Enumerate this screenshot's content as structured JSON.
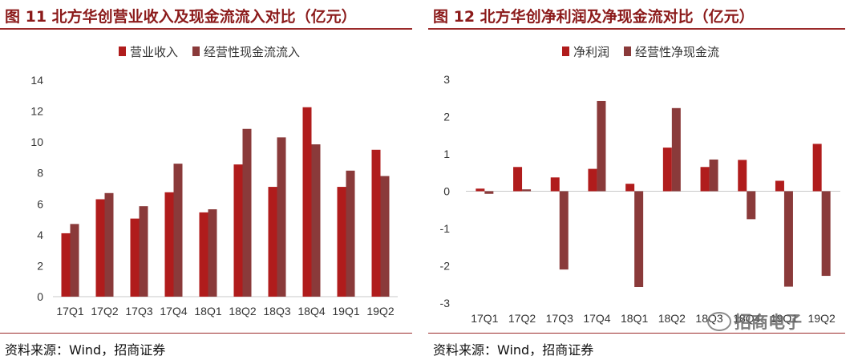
{
  "colors": {
    "primary": "#b01c1c",
    "secondary": "#8a3a3a",
    "rule": "#9b2a2a",
    "title": "#8b1a1a"
  },
  "left": {
    "title": "图 11  北方华创营业收入及现金流流入对比（亿元）",
    "source": "资料来源：Wind，招商证券"
  },
  "right": {
    "title": "图 12  北方华创净利润及净现金流对比（亿元）",
    "source": "资料来源：Wind，招商证券",
    "watermark": "招商电子"
  },
  "chart_data": [
    {
      "type": "bar",
      "categories": [
        "17Q1",
        "17Q2",
        "17Q3",
        "17Q4",
        "18Q1",
        "18Q2",
        "18Q3",
        "18Q4",
        "19Q1",
        "19Q2"
      ],
      "series": [
        {
          "name": "营业收入",
          "values": [
            4.1,
            6.3,
            5.05,
            6.75,
            5.45,
            8.55,
            7.1,
            12.25,
            7.1,
            9.5
          ]
        },
        {
          "name": "经营性现金流流入",
          "values": [
            4.7,
            6.7,
            5.85,
            8.6,
            5.65,
            10.85,
            10.3,
            9.85,
            8.15,
            7.8
          ]
        }
      ],
      "ylim": [
        0,
        14
      ],
      "yticks": [
        0,
        2,
        4,
        6,
        8,
        10,
        12,
        14
      ],
      "legend": "top"
    },
    {
      "type": "bar",
      "categories": [
        "17Q1",
        "17Q2",
        "17Q3",
        "17Q4",
        "18Q1",
        "18Q2",
        "18Q3",
        "18Q4",
        "19Q1",
        "19Q2"
      ],
      "series": [
        {
          "name": "净利润",
          "values": [
            0.07,
            0.65,
            0.37,
            0.6,
            0.2,
            1.17,
            0.65,
            0.84,
            0.28,
            1.27
          ]
        },
        {
          "name": "经营性净现金流",
          "values": [
            -0.07,
            0.05,
            -2.1,
            2.42,
            -2.57,
            2.23,
            0.85,
            -0.75,
            -2.56,
            -2.27
          ]
        }
      ],
      "ylim": [
        -3,
        3
      ],
      "yticks": [
        -3,
        -2,
        -1,
        0,
        1,
        2,
        3
      ],
      "legend": "top"
    }
  ]
}
